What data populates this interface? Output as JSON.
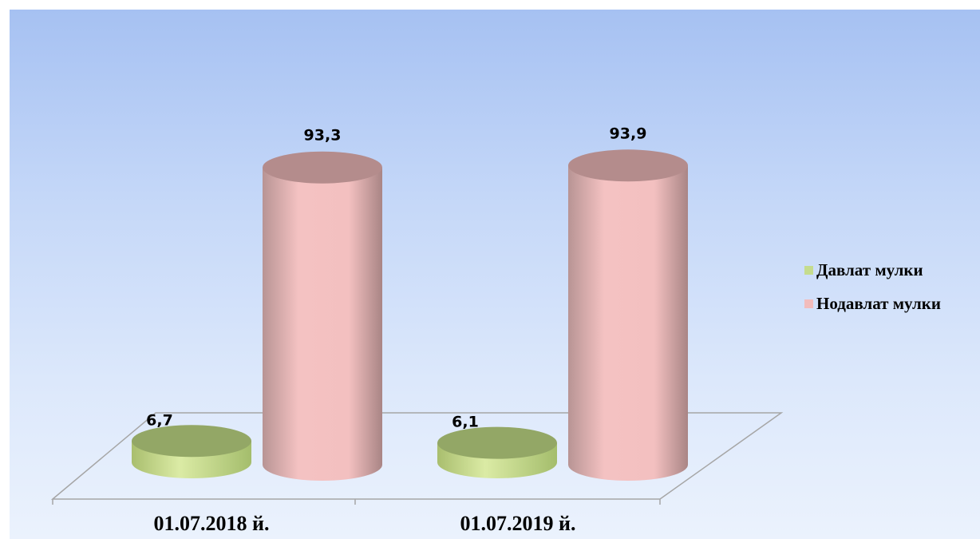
{
  "chart_data": {
    "type": "bar",
    "categories": [
      "01.07.2018 й.",
      "01.07.2019 й."
    ],
    "series": [
      {
        "name": "Давлат мулки",
        "values": [
          6.7,
          6.1
        ],
        "labels": [
          "6,7",
          "6,1"
        ],
        "color": "#c5dc8e"
      },
      {
        "name": "Нодавлат мулки",
        "values": [
          93.3,
          93.9
        ],
        "labels": [
          "93,3",
          "93,9"
        ],
        "color": "#f2bcbc"
      }
    ],
    "ylim": [
      0,
      100
    ],
    "legend": "right",
    "grid": false,
    "title": "",
    "xlabel": "",
    "ylabel": ""
  }
}
